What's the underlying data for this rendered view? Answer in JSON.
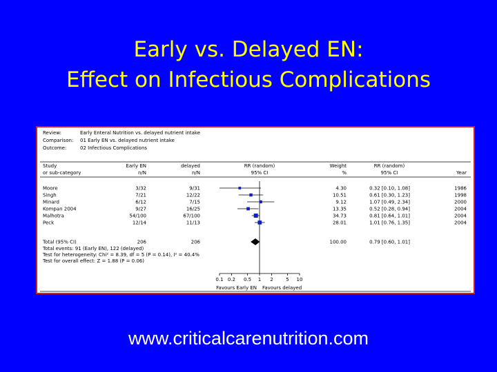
{
  "slide": {
    "title_line1": "Early vs. Delayed EN:",
    "title_line2": "Effect on Infectious Complications",
    "url": "www.criticalcarenutrition.com"
  },
  "colors": {
    "background": "#0000FF",
    "title": "#FFFF00",
    "panel_border": "#D02020",
    "marker": "#1020C0"
  },
  "chart_data": {
    "type": "forest",
    "header": [
      {
        "label": "Review:",
        "value": "Early Enteral Nutrition vs. delayed nutrient intake"
      },
      {
        "label": "Comparison:",
        "value": "01 Early EN vs. delayed nutrient intake"
      },
      {
        "label": "Outcome:",
        "value": "02 Infectious Complications"
      }
    ],
    "columns": {
      "study": [
        "Study",
        "or sub-category"
      ],
      "early": [
        "Early EN",
        "n/N"
      ],
      "delayed": [
        "delayed",
        "n/N"
      ],
      "plot": [
        "RR (random)",
        "95% CI"
      ],
      "weight": [
        "Weight",
        "%"
      ],
      "rr": [
        "RR (random)",
        "95% CI"
      ],
      "year": [
        "",
        "Year"
      ]
    },
    "studies": [
      {
        "name": "Moore",
        "early": "3/32",
        "delayed": "9/31",
        "rr": 0.32,
        "lo": 0.1,
        "hi": 1.08,
        "weight": "4.30",
        "ci_text": "0.32 [0.10, 1.08]",
        "year": "1986"
      },
      {
        "name": "Singh",
        "early": "7/21",
        "delayed": "12/22",
        "rr": 0.61,
        "lo": 0.3,
        "hi": 1.23,
        "weight": "10.51",
        "ci_text": "0.61 [0.30, 1.23]",
        "year": "1998"
      },
      {
        "name": "Minard",
        "early": "6/12",
        "delayed": "7/15",
        "rr": 1.07,
        "lo": 0.49,
        "hi": 2.34,
        "weight": "9.12",
        "ci_text": "1.07 [0.49, 2.34]",
        "year": "2000"
      },
      {
        "name": "Kompan 2004",
        "early": "9/27",
        "delayed": "16/25",
        "rr": 0.52,
        "lo": 0.28,
        "hi": 0.94,
        "weight": "13.35",
        "ci_text": "0.52 [0.28, 0.94]",
        "year": "2004"
      },
      {
        "name": "Malhotra",
        "early": "54/100",
        "delayed": "67/100",
        "rr": 0.81,
        "lo": 0.64,
        "hi": 1.01,
        "weight": "34.73",
        "ci_text": "0.81 [0.64, 1.01]",
        "year": "2004"
      },
      {
        "name": "Peck",
        "early": "12/14",
        "delayed": "11/13",
        "rr": 1.01,
        "lo": 0.76,
        "hi": 1.35,
        "weight": "28.01",
        "ci_text": "1.01 [0.76, 1.35]",
        "year": "2004"
      }
    ],
    "total": {
      "label": "Total (95% CI)",
      "early": "206",
      "delayed": "206",
      "rr": 0.79,
      "lo": 0.6,
      "hi": 1.01,
      "weight": "100.00",
      "ci_text": "0.79 [0.60, 1.01]"
    },
    "notes": [
      "Total events: 91 (Early EN), 122 (delayed)",
      "Test for heterogeneity: Chi² = 8.39, df = 5 (P = 0.14), I² = 40.4%",
      "Test for overall effect: Z = 1.88 (P = 0.06)"
    ],
    "axis": {
      "scale": "log",
      "ticks": [
        0.1,
        0.2,
        0.5,
        1,
        2,
        5,
        10
      ],
      "tick_labels": [
        "0.1",
        "0.2",
        "0.5",
        "1",
        "2",
        "5",
        "10"
      ],
      "xlim": [
        0.1,
        10
      ]
    },
    "favours": {
      "left": "Favours Early EN",
      "right": "Favours delayed"
    }
  }
}
